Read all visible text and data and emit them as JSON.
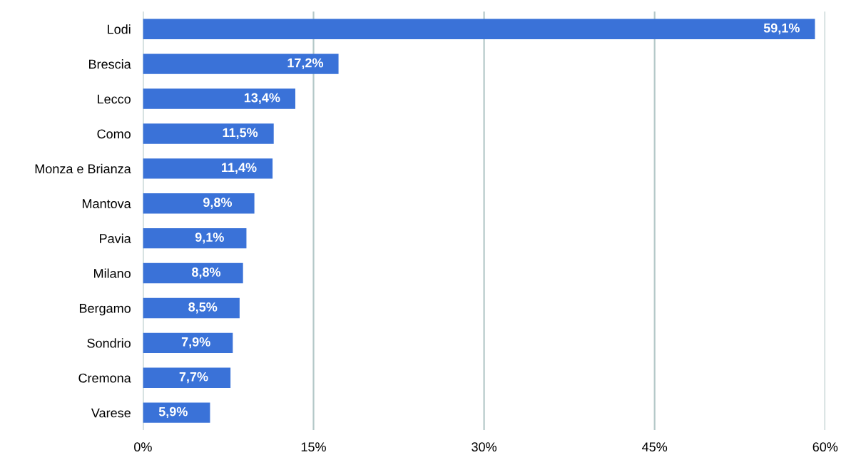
{
  "chart_data": {
    "type": "bar",
    "orientation": "horizontal",
    "categories": [
      "Lodi",
      "Brescia",
      "Lecco",
      "Como",
      "Monza e Brianza",
      "Mantova",
      "Pavia",
      "Milano",
      "Bergamo",
      "Sondrio",
      "Cremona",
      "Varese"
    ],
    "values": [
      59.1,
      17.2,
      13.4,
      11.5,
      11.4,
      9.8,
      9.1,
      8.8,
      8.5,
      7.9,
      7.7,
      5.9
    ],
    "value_labels": [
      "59,1%",
      "17,2%",
      "13,4%",
      "11,5%",
      "11,4%",
      "9,8%",
      "9,1%",
      "8,8%",
      "8,5%",
      "7,9%",
      "7,7%",
      "5,9%"
    ],
    "color": "#3a72d8",
    "xlim": [
      0,
      60
    ],
    "xticks": [
      {
        "value": 0,
        "label": "0%"
      },
      {
        "value": 15,
        "label": "15%"
      },
      {
        "value": 30,
        "label": "30%"
      },
      {
        "value": 45,
        "label": "45%"
      },
      {
        "value": 60,
        "label": "60%"
      }
    ],
    "grid": "x"
  }
}
